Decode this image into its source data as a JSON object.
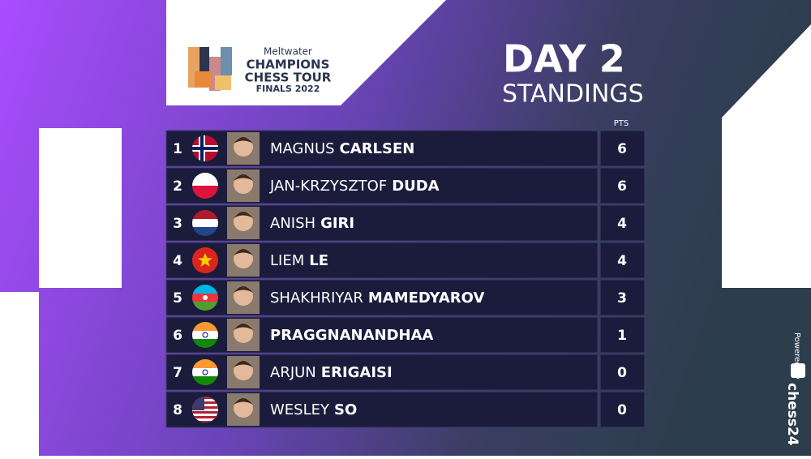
{
  "logo": {
    "brand": "Meltwater",
    "line1": "CHAMPIONS",
    "line2": "CHESS TOUR",
    "line3": "FINALS 2022"
  },
  "header": {
    "title": "DAY 2",
    "subtitle": "STANDINGS"
  },
  "table": {
    "points_header": "PTS",
    "rows": [
      {
        "rank": 1,
        "first_name": "MAGNUS",
        "last_name": "CARLSEN",
        "points": 6
      },
      {
        "rank": 2,
        "first_name": "JAN-KRZYSZTOF",
        "last_name": "DUDA",
        "points": 6
      },
      {
        "rank": 3,
        "first_name": "ANISH",
        "last_name": "GIRI",
        "points": 4
      },
      {
        "rank": 4,
        "first_name": "LIEM",
        "last_name": "LE",
        "points": 4
      },
      {
        "rank": 5,
        "first_name": "SHAKHRIYAR",
        "last_name": "MAMEDYAROV",
        "points": 3
      },
      {
        "rank": 6,
        "last_name": "PRAGGNANANDHAA",
        "points": 1
      },
      {
        "rank": 7,
        "first_name": "ARJUN",
        "last_name": "ERIGAISI",
        "points": 0
      },
      {
        "rank": 8,
        "first_name": "WESLEY",
        "last_name": "SO",
        "points": 0
      }
    ]
  },
  "sponsor": {
    "powered_by": "Powered by",
    "brand": "chess24"
  }
}
